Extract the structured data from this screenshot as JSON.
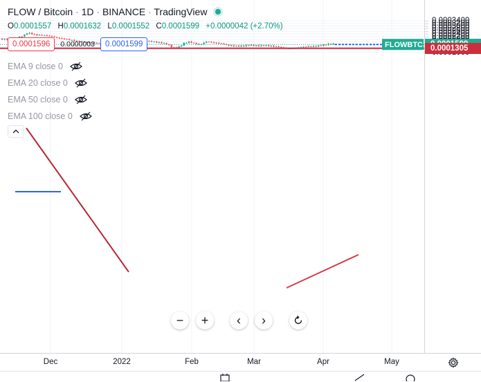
{
  "header": {
    "symbol": "FLOW / Bitcoin",
    "interval": "1D",
    "exchange": "BINANCE",
    "source": "TradingView",
    "separator": "·",
    "status_color": "#26a69a"
  },
  "ohlc": {
    "open_label": "O",
    "open": "0.0001557",
    "high_label": "H",
    "high": "0.0001632",
    "low_label": "L",
    "low": "0.0001552",
    "close_label": "C",
    "close": "0.0001599",
    "change": "+0.0000042 (+2.70%)"
  },
  "quote": {
    "sell": "0.0001596",
    "spread": "0.0000003",
    "buy": "0.0001599"
  },
  "indicators": [
    {
      "label": "EMA 9 close 0",
      "icon": "eye-off-icon"
    },
    {
      "label": "EMA 20 close 0",
      "icon": "eye-off-icon"
    },
    {
      "label": "EMA 50 close 0",
      "icon": "eye-off-icon"
    },
    {
      "label": "EMA 100 close 0",
      "icon": "eye-off-icon"
    }
  ],
  "price_axis": {
    "ticks": [
      "0.0003400",
      "0.0003200",
      "0.0003000",
      "0.0002800",
      "0.0002600",
      "0.0002400",
      "0.0002200",
      "0.0002000",
      "0.0001800",
      "0.0001600",
      "0.0001400",
      "0.0001200",
      "0.0001000"
    ],
    "last_price": {
      "symbol_label": "FLOWBTC",
      "value": "0.0001599",
      "color": "#22ab94"
    },
    "support": {
      "value": "0.0001305",
      "color": "#cc2f3c"
    }
  },
  "time_axis": {
    "ticks": [
      "Dec",
      "2022",
      "Feb",
      "Mar",
      "Apr",
      "May"
    ]
  },
  "colors": {
    "up": "#22ab94",
    "down": "#f7525f",
    "trendline": "#b22833",
    "level": "#2962ff",
    "grid": "#f0f3fa"
  },
  "navigation": {
    "zoom_out": "−",
    "zoom_in": "+",
    "scroll_left": "‹",
    "scroll_right": "›",
    "reset": "reset-icon"
  }
}
